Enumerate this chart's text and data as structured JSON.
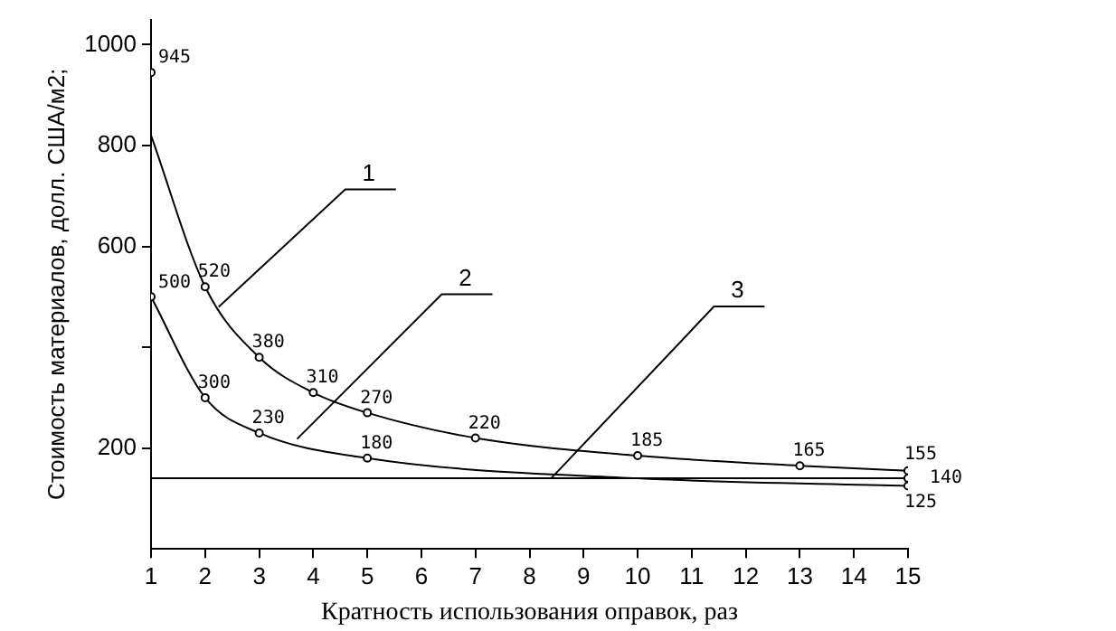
{
  "chart_data": {
    "type": "line",
    "xlabel": "Кратность использования оправок, раз",
    "ylabel": "Стоимость материалов, долл. США/м2;",
    "xlim": [
      1,
      15
    ],
    "xticks": [
      1,
      2,
      3,
      4,
      5,
      6,
      7,
      8,
      9,
      10,
      11,
      12,
      13,
      14,
      15
    ],
    "ylim": [
      0,
      1050
    ],
    "yticks": [
      200,
      {
        "value": 400,
        "label": null
      },
      600,
      800,
      1000
    ],
    "grid": false,
    "legend": false,
    "marker": "circle",
    "line_style": "solid",
    "series": [
      {
        "color": "#000000",
        "x": [
          1,
          2,
          3,
          4,
          5,
          7,
          10,
          13,
          15
        ],
        "values": [
          820,
          520,
          380,
          310,
          270,
          220,
          185,
          165,
          155
        ],
        "value_labels": [
          null,
          "520",
          "380",
          "310",
          "270",
          "220",
          "185",
          "165",
          "155"
        ]
      },
      {
        "color": "#000000",
        "x": [
          1,
          2,
          3,
          5,
          10,
          15
        ],
        "values": [
          500,
          300,
          230,
          180,
          140,
          125
        ],
        "value_labels": [
          "500",
          "300",
          "230",
          "180",
          null,
          "125"
        ]
      },
      {
        "color": "#000000",
        "x": [
          1,
          15
        ],
        "values": [
          140,
          140
        ],
        "value_labels": [
          null,
          "140"
        ]
      },
      {
        "type": "scatter",
        "color": "#000000",
        "x": [
          1
        ],
        "values": [
          945
        ],
        "value_labels": [
          "945"
        ]
      }
    ],
    "annotations": [
      {
        "text": "1",
        "x": 2.25,
        "y": 480
      },
      {
        "text": "2",
        "x": 3.7,
        "y": 218
      },
      {
        "text": "3",
        "x": 8.4,
        "y": 140
      }
    ]
  }
}
